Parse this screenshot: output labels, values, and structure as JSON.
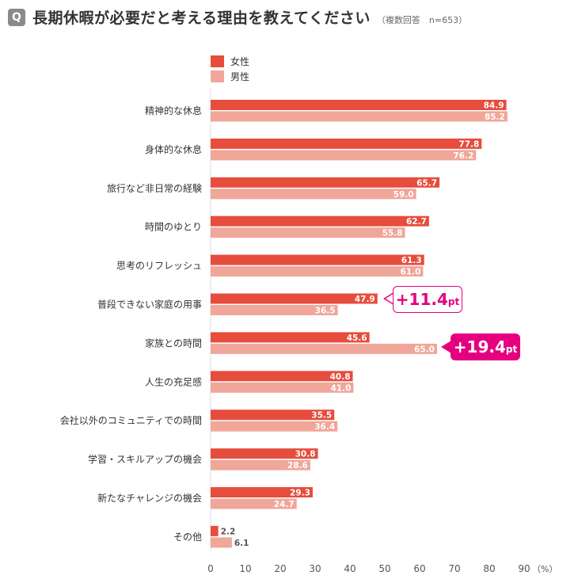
{
  "header": {
    "badge": "Q",
    "title": "長期休暇が必要だと考える理由を教えてください",
    "subtitle": "（複数回答　n=653）"
  },
  "chart_data": {
    "type": "bar",
    "orientation": "horizontal",
    "categories": [
      "精神的な休息",
      "身体的な休息",
      "旅行など非日常の経験",
      "時間のゆとり",
      "思考のリフレッシュ",
      "普段できない家庭の用事",
      "家族との時間",
      "人生の充足感",
      "会社以外のコミュニティでの時間",
      "学習・スキルアップの機会",
      "新たなチャレンジの機会",
      "その他"
    ],
    "series": [
      {
        "name": "女性",
        "color": "#e64d3d",
        "values": [
          84.9,
          77.8,
          65.7,
          62.7,
          61.3,
          47.9,
          45.6,
          40.8,
          35.5,
          30.8,
          29.3,
          2.2
        ]
      },
      {
        "name": "男性",
        "color": "#f0a699",
        "values": [
          85.2,
          76.2,
          59.0,
          55.8,
          61.0,
          36.5,
          65.0,
          41.0,
          36.4,
          28.6,
          24.7,
          6.1
        ]
      }
    ],
    "value_labels": {
      "女性": [
        "84.9",
        "77.8",
        "65.7",
        "62.7",
        "61.3",
        "47.9",
        "45.6",
        "40.8",
        "35.5",
        "30.8",
        "29.3",
        "2.2"
      ],
      "男性": [
        "85.2",
        "76.2",
        "59.0",
        "55.8",
        "61.0",
        "36.5",
        "65.0",
        "41.0",
        "36.4",
        "28.6",
        "24.7",
        "6.1"
      ]
    },
    "x_ticks": [
      "0",
      "10",
      "20",
      "30",
      "40",
      "50",
      "60",
      "70",
      "80",
      "90"
    ],
    "x_unit": "（%）",
    "xlim": [
      0,
      90
    ],
    "grid": false,
    "legend_position": "top-left of plot",
    "annotations": [
      {
        "category": "普段できない家庭の用事",
        "text": "+11.4",
        "unit": "pt"
      },
      {
        "category": "家族との時間",
        "text": "+19.4",
        "unit": "pt"
      }
    ]
  },
  "colors": {
    "female": "#e64d3d",
    "male": "#f0a699",
    "accent": "#e5007f",
    "badge": "#8a8a8a"
  }
}
